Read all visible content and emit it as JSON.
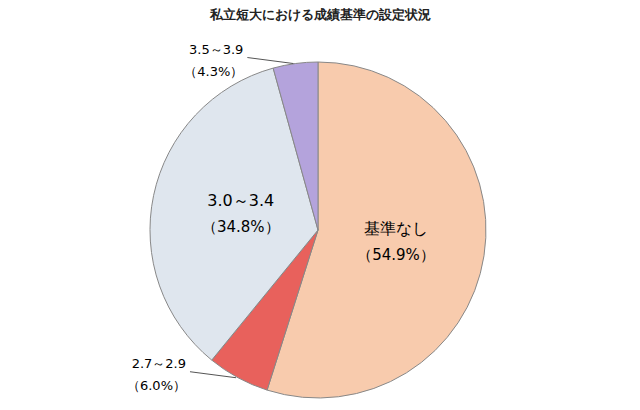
{
  "chart_data": {
    "type": "pie",
    "title": "私立短大における成績基準の設定状況",
    "categories": [
      "基準なし",
      "2.7～2.9",
      "3.0～3.4",
      "3.5～3.9"
    ],
    "values": [
      54.9,
      6.0,
      34.8,
      4.3
    ],
    "value_labels": [
      "（54.9%）",
      "（6.0%）",
      "（34.8%）",
      "（4.3%）"
    ],
    "colors": [
      "#f8cbad",
      "#e8615c",
      "#dfe6ee",
      "#b4a3dc"
    ],
    "data_labels": true
  }
}
